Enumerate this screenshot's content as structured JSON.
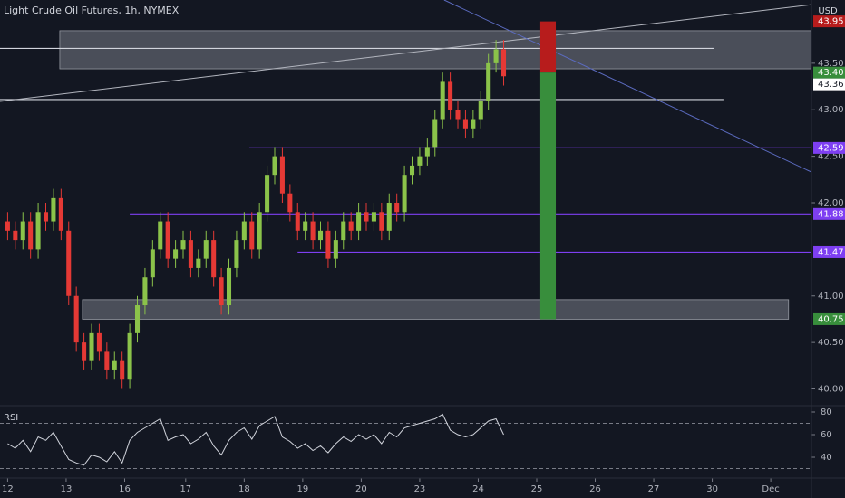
{
  "chart_data": {
    "type": "candlestick",
    "title": "Light Crude Oil Futures, 1h, NYMEX",
    "currency": "USD",
    "up_color": "#8bc34a",
    "down_color": "#e53935",
    "x": [
      0,
      3,
      6,
      9,
      12,
      15,
      18,
      21,
      24,
      27,
      30,
      33,
      36,
      39,
      42,
      45,
      48,
      51,
      54,
      57,
      60,
      63,
      66,
      69,
      72,
      75,
      78,
      81,
      84,
      87,
      90,
      93,
      96,
      99,
      102,
      105,
      108,
      111,
      114,
      117,
      120,
      123,
      126,
      129,
      132,
      135,
      138,
      141,
      144,
      147,
      150,
      153,
      156,
      159,
      162,
      165,
      168,
      171,
      174,
      177,
      180,
      183,
      186,
      189,
      192,
      195
    ],
    "open": [
      41.8,
      41.7,
      41.6,
      41.8,
      41.5,
      41.9,
      41.8,
      42.05,
      41.7,
      41.0,
      40.5,
      40.3,
      40.6,
      40.4,
      40.2,
      40.3,
      40.1,
      40.6,
      40.9,
      41.2,
      41.5,
      41.8,
      41.4,
      41.5,
      41.6,
      41.3,
      41.4,
      41.6,
      41.2,
      40.9,
      41.3,
      41.6,
      41.8,
      41.5,
      41.9,
      42.3,
      42.5,
      42.1,
      41.9,
      41.7,
      41.8,
      41.6,
      41.7,
      41.4,
      41.6,
      41.8,
      41.7,
      41.9,
      41.8,
      41.9,
      41.7,
      42.0,
      41.9,
      42.3,
      42.4,
      42.5,
      42.6,
      42.9,
      43.3,
      43.0,
      42.9,
      42.8,
      42.9,
      43.1,
      43.5,
      43.65
    ],
    "high": [
      41.9,
      41.8,
      41.9,
      41.9,
      42.0,
      42.0,
      42.15,
      42.15,
      41.8,
      41.1,
      40.6,
      40.7,
      40.7,
      40.5,
      40.4,
      40.4,
      40.7,
      41.0,
      41.3,
      41.6,
      41.9,
      41.9,
      41.6,
      41.7,
      41.7,
      41.5,
      41.7,
      41.7,
      41.3,
      41.4,
      41.7,
      41.9,
      41.9,
      42.0,
      42.4,
      42.6,
      42.6,
      42.2,
      42.0,
      41.9,
      41.9,
      41.8,
      41.8,
      41.7,
      41.9,
      41.9,
      42.0,
      42.0,
      42.0,
      42.0,
      42.1,
      42.1,
      42.4,
      42.5,
      42.6,
      42.7,
      43.0,
      43.4,
      43.4,
      43.1,
      43.0,
      43.0,
      43.2,
      43.6,
      43.75,
      43.75
    ],
    "low": [
      41.6,
      41.5,
      41.5,
      41.4,
      41.4,
      41.7,
      41.7,
      41.6,
      40.9,
      40.4,
      40.2,
      40.2,
      40.3,
      40.1,
      40.1,
      40.0,
      40.0,
      40.5,
      40.8,
      41.1,
      41.4,
      41.3,
      41.3,
      41.4,
      41.2,
      41.2,
      41.3,
      41.1,
      40.8,
      40.8,
      41.2,
      41.5,
      41.4,
      41.4,
      41.8,
      42.2,
      42.0,
      41.8,
      41.6,
      41.6,
      41.5,
      41.5,
      41.3,
      41.3,
      41.5,
      41.6,
      41.6,
      41.7,
      41.7,
      41.6,
      41.6,
      41.8,
      41.8,
      42.2,
      42.3,
      42.4,
      42.5,
      42.8,
      42.9,
      42.8,
      42.7,
      42.7,
      42.8,
      43.0,
      43.4,
      43.26
    ],
    "close": [
      41.7,
      41.6,
      41.8,
      41.5,
      41.9,
      41.8,
      42.05,
      41.7,
      41.0,
      40.5,
      40.3,
      40.6,
      40.4,
      40.2,
      40.3,
      40.1,
      40.6,
      40.9,
      41.2,
      41.5,
      41.8,
      41.4,
      41.5,
      41.6,
      41.3,
      41.4,
      41.6,
      41.2,
      40.9,
      41.3,
      41.6,
      41.8,
      41.5,
      41.9,
      42.3,
      42.5,
      42.1,
      41.9,
      41.7,
      41.8,
      41.6,
      41.7,
      41.4,
      41.6,
      41.8,
      41.7,
      41.9,
      41.8,
      41.9,
      41.7,
      42.0,
      41.9,
      42.3,
      42.4,
      42.5,
      42.6,
      42.9,
      43.3,
      43.0,
      42.9,
      42.8,
      42.9,
      43.1,
      43.5,
      43.65,
      43.36
    ],
    "xlim": [
      -3,
      316
    ],
    "ylim": [
      39.82,
      44.18
    ],
    "yticks": [
      {
        "value": 43.5,
        "label": "43.50"
      },
      {
        "value": 43.0,
        "label": "43.00"
      },
      {
        "value": 42.5,
        "label": "42.50"
      },
      {
        "value": 42.0,
        "label": "42.00"
      },
      {
        "value": 41.0,
        "label": "41.00"
      },
      {
        "value": 40.5,
        "label": "40.50"
      },
      {
        "value": 40.0,
        "label": "40.00"
      }
    ],
    "xticks": [
      {
        "value": 0,
        "label": "12"
      },
      {
        "value": 23,
        "label": "13"
      },
      {
        "value": 46,
        "label": "16"
      },
      {
        "value": 70,
        "label": "17"
      },
      {
        "value": 93,
        "label": "18"
      },
      {
        "value": 116,
        "label": "19"
      },
      {
        "value": 139,
        "label": "20"
      },
      {
        "value": 162,
        "label": "23"
      },
      {
        "value": 185,
        "label": "24"
      },
      {
        "value": 208,
        "label": "25"
      },
      {
        "value": 231,
        "label": "26"
      },
      {
        "value": 254,
        "label": "27"
      },
      {
        "value": 277,
        "label": "30"
      },
      {
        "value": 300,
        "label": "Dec"
      }
    ],
    "price_badges": [
      {
        "value": 43.95,
        "label": "43.95",
        "color": "#b71c1c"
      },
      {
        "value": 43.4,
        "label": "43.40",
        "color": "#388e3c"
      },
      {
        "value": 43.36,
        "label": "43.36",
        "color": "#ffffff"
      },
      {
        "value": 42.59,
        "label": "42.59",
        "color": "#7e3ff2"
      },
      {
        "value": 41.88,
        "label": "41.88",
        "color": "#7e3ff2"
      },
      {
        "value": 41.47,
        "label": "41.47",
        "color": "#7e3ff2"
      },
      {
        "value": 40.75,
        "label": "40.75",
        "color": "#388e3c"
      }
    ],
    "zones": [
      {
        "x": [
          20.5,
          316
        ],
        "y": [
          43.44,
          43.85
        ],
        "color": "#787b86"
      },
      {
        "x": [
          29.4,
          307
        ],
        "y": [
          40.75,
          40.96
        ],
        "color": "#787b86"
      }
    ],
    "hlines": [
      {
        "x": [
          -3,
          277.5
        ],
        "value": 43.66,
        "color": "#d1d4dc"
      },
      {
        "x": [
          -3,
          281.4
        ],
        "value": 43.11,
        "color": "#d1d4dc"
      },
      {
        "x": [
          95,
          316
        ],
        "value": 42.59,
        "color": "#7e3ff2"
      },
      {
        "x": [
          48,
          316
        ],
        "value": 41.88,
        "color": "#7e3ff2"
      },
      {
        "x": [
          114,
          316
        ],
        "value": 41.47,
        "color": "#7e3ff2"
      }
    ],
    "trendlines": [
      {
        "x": [
          -3,
          316
        ],
        "y": [
          43.09,
          44.13
        ],
        "color": "#b2b5be"
      },
      {
        "x": [
          171.6,
          316
        ],
        "y": [
          44.18,
          42.33
        ],
        "color": "#5b6bc0"
      }
    ],
    "position": {
      "x": [
        209.4,
        215.5
      ],
      "entry": 43.4,
      "target": 43.95,
      "stop": 40.75,
      "loss_color": "#b71c1c",
      "gain_color": "#388e3c"
    },
    "rsi": {
      "label": "RSI",
      "color": "#d1d4dc",
      "values": [
        52,
        48,
        55,
        45,
        58,
        55,
        62,
        50,
        38,
        35,
        33,
        42,
        40,
        36,
        45,
        35,
        55,
        62,
        66,
        70,
        74,
        55,
        58,
        60,
        52,
        56,
        62,
        50,
        42,
        55,
        62,
        66,
        56,
        68,
        72,
        76,
        58,
        54,
        48,
        52,
        46,
        50,
        44,
        52,
        58,
        54,
        60,
        56,
        60,
        52,
        62,
        58,
        66,
        68,
        70,
        72,
        74,
        78,
        64,
        60,
        58,
        60,
        66,
        72,
        74,
        60
      ],
      "ylim": [
        20,
        84
      ],
      "yticks": [
        80,
        60,
        40
      ],
      "bands": [
        70,
        30
      ]
    }
  }
}
